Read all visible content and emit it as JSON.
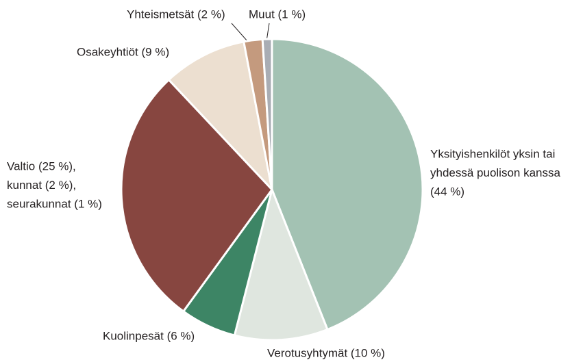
{
  "chart_data": {
    "type": "pie",
    "categories": [
      [
        "Yksityishenkilöt yksin tai",
        "yhdessä puolison kanssa",
        "(44 %)"
      ],
      [
        "Verotusyhtymät (10 %)"
      ],
      [
        "Kuolinpesät (6 %)"
      ],
      [
        "Valtio (25 %),",
        "kunnat (2 %),",
        "seurakunnat (1 %)"
      ],
      [
        "Osakeyhtiöt (9 %)"
      ],
      [
        "Yhteismetsät (2 %)"
      ],
      [
        "Muut (1 %)"
      ]
    ],
    "values": [
      44,
      10,
      6,
      28,
      9,
      2,
      1
    ],
    "colors": [
      "#a3c2b3",
      "#dfe6df",
      "#3d8565",
      "#874640",
      "#ecdfd0",
      "#c49a7e",
      "#a9adb4"
    ]
  }
}
